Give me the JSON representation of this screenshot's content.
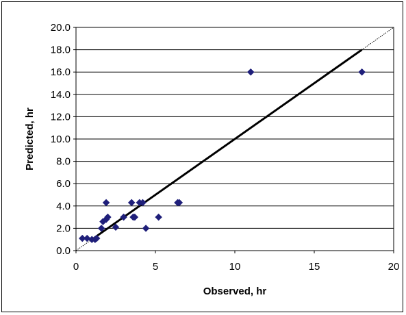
{
  "chart_data": {
    "type": "scatter",
    "title": "",
    "xlabel": "Observed, hr",
    "ylabel": "Predicted, hr",
    "xlim": [
      0,
      20
    ],
    "ylim": [
      0,
      20
    ],
    "x_ticks": [
      "0",
      "5",
      "10",
      "15",
      "20"
    ],
    "y_ticks": [
      "0.0",
      "2.0",
      "4.0",
      "6.0",
      "8.0",
      "10.0",
      "12.0",
      "14.0",
      "16.0",
      "18.0",
      "20.0"
    ],
    "grid": "horizontal",
    "legend": "none",
    "colors": {
      "points": "#1f1f7a",
      "fit_line": "#000000",
      "identity_line": "#000000",
      "grid": "#000000"
    },
    "series": [
      {
        "values": [
          [
            0.4,
            1.1
          ],
          [
            0.7,
            1.1
          ],
          [
            1.0,
            1.0
          ],
          [
            1.2,
            1.0
          ],
          [
            1.3,
            1.1
          ],
          [
            1.6,
            2.0
          ],
          [
            1.7,
            2.6
          ],
          [
            1.9,
            2.8
          ],
          [
            1.9,
            4.3
          ],
          [
            2.0,
            3.0
          ],
          [
            2.5,
            2.1
          ],
          [
            3.0,
            3.0
          ],
          [
            3.5,
            4.3
          ],
          [
            3.6,
            3.0
          ],
          [
            3.7,
            3.0
          ],
          [
            4.0,
            4.3
          ],
          [
            4.2,
            4.3
          ],
          [
            4.4,
            2.0
          ],
          [
            5.2,
            3.0
          ],
          [
            6.4,
            4.3
          ],
          [
            6.5,
            4.3
          ],
          [
            11.0,
            16.0
          ],
          [
            18.0,
            16.0
          ]
        ]
      }
    ],
    "fit_line": {
      "x": [
        1.0,
        18.0
      ],
      "y": [
        1.0,
        18.0
      ]
    },
    "identity_line": {
      "x": [
        0,
        20
      ],
      "y": [
        0,
        20
      ]
    }
  }
}
